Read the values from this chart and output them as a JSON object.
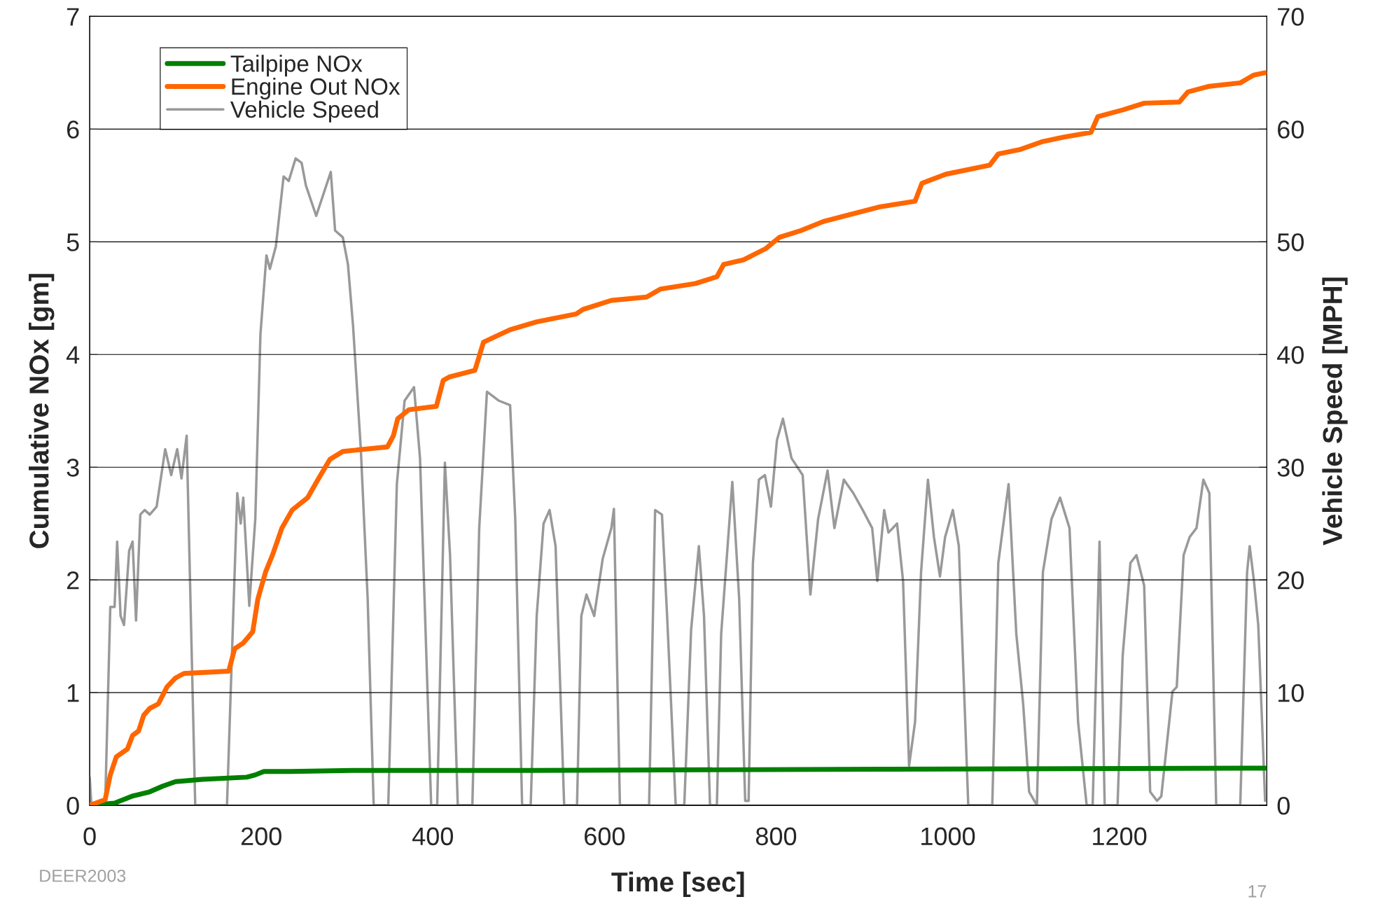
{
  "chart_data": {
    "type": "line",
    "xlabel": "Time [sec]",
    "ylabel": "Cumulative NOx [gm]",
    "y2label": "Vehicle Speed [MPH]",
    "xlim": [
      0,
      1372
    ],
    "xticks": [
      0,
      200,
      400,
      600,
      800,
      1000,
      1200
    ],
    "ylim": [
      0,
      7
    ],
    "yticks": [
      0,
      1,
      2,
      3,
      4,
      5,
      6,
      7
    ],
    "y2lim": [
      0,
      70
    ],
    "y2ticks": [
      0,
      10,
      20,
      30,
      40,
      50,
      60,
      70
    ],
    "grid": "y",
    "legend": "top left",
    "marker": "none",
    "line_style": "solid",
    "annotations": [
      "DEER2003",
      "17"
    ],
    "series": [
      {
        "name": "Tailpipe NOx",
        "color": "#008000",
        "x": [
          0,
          29,
          49,
          70,
          85,
          100,
          131,
          183,
          193,
          203,
          234,
          306,
          511,
          921,
          1370
        ],
        "values": [
          0,
          0.02,
          0.08,
          0.12,
          0.17,
          0.21,
          0.23,
          0.25,
          0.27,
          0.3,
          0.3,
          0.31,
          0.31,
          0.32,
          0.33
        ]
      },
      {
        "name": "Engine Out NOx",
        "color": "#ff6600",
        "x": [
          0,
          18,
          24,
          31,
          44,
          50,
          57,
          63,
          70,
          80,
          90,
          100,
          110,
          162,
          169,
          179,
          190,
          196,
          205,
          213,
          224,
          236,
          254,
          266,
          280,
          295,
          347,
          354,
          359,
          372,
          404,
          412,
          419,
          449,
          459,
          490,
          521,
          567,
          575,
          608,
          649,
          665,
          706,
          731,
          739,
          762,
          788,
          804,
          829,
          855,
          880,
          921,
          962,
          970,
          998,
          1049,
          1059,
          1085,
          1111,
          1136,
          1167,
          1175,
          1204,
          1229,
          1270,
          1280,
          1305,
          1341,
          1357,
          1370
        ],
        "values": [
          0,
          0.05,
          0.27,
          0.43,
          0.5,
          0.62,
          0.66,
          0.8,
          0.86,
          0.9,
          1.05,
          1.13,
          1.17,
          1.19,
          1.39,
          1.44,
          1.54,
          1.83,
          2.07,
          2.22,
          2.46,
          2.62,
          2.73,
          2.89,
          3.07,
          3.14,
          3.18,
          3.28,
          3.43,
          3.51,
          3.54,
          3.77,
          3.8,
          3.86,
          4.11,
          4.22,
          4.29,
          4.36,
          4.4,
          4.48,
          4.51,
          4.58,
          4.63,
          4.69,
          4.8,
          4.84,
          4.94,
          5.04,
          5.1,
          5.18,
          5.23,
          5.31,
          5.36,
          5.52,
          5.6,
          5.68,
          5.78,
          5.82,
          5.89,
          5.93,
          5.97,
          6.11,
          6.17,
          6.23,
          6.24,
          6.33,
          6.38,
          6.41,
          6.48,
          6.5
        ]
      },
      {
        "name": "Vehicle Speed",
        "color": "#999999",
        "axis": "y2",
        "x": [
          0,
          2,
          18,
          24,
          29,
          32,
          36,
          40,
          46,
          50,
          54,
          59,
          64,
          70,
          78,
          88,
          95,
          102,
          107,
          113,
          123,
          160,
          172,
          176,
          179,
          186,
          193,
          199,
          206,
          210,
          217,
          226,
          232,
          240,
          247,
          252,
          264,
          281,
          286,
          295,
          301,
          307,
          316,
          324,
          331,
          348,
          358,
          367,
          378,
          385,
          398,
          405,
          414,
          420,
          429,
          446,
          454,
          463,
          477,
          490,
          496,
          504,
          514,
          521,
          529,
          536,
          543,
          553,
          568,
          573,
          579,
          588,
          598,
          608,
          611,
          618,
          652,
          659,
          667,
          673,
          683,
          693,
          701,
          710,
          716,
          723,
          731,
          736,
          749,
          757,
          764,
          768,
          773,
          780,
          787,
          794,
          801,
          808,
          818,
          831,
          840,
          849,
          860,
          868,
          879,
          890,
          901,
          912,
          918,
          926,
          931,
          941,
          948,
          955,
          962,
          969,
          977,
          984,
          991,
          997,
          1006,
          1013,
          1024,
          1052,
          1059,
          1071,
          1080,
          1088,
          1095,
          1104,
          1111,
          1121,
          1131,
          1142,
          1152,
          1162,
          1169,
          1177,
          1183,
          1198,
          1204,
          1213,
          1220,
          1229,
          1236,
          1244,
          1249,
          1262,
          1267,
          1275,
          1282,
          1290,
          1298,
          1305,
          1313,
          1341,
          1349,
          1352,
          1357,
          1362,
          1370
        ],
        "values": [
          2.5,
          0,
          0,
          17.6,
          17.6,
          23.4,
          16.8,
          16,
          22.6,
          23.4,
          16.4,
          25.8,
          26.2,
          25.8,
          26.5,
          31.6,
          29.3,
          31.6,
          29,
          32.8,
          0,
          0,
          27.7,
          25,
          27.3,
          17.7,
          25.4,
          41.8,
          48.8,
          47.6,
          49.6,
          55.8,
          55.4,
          57.4,
          57,
          55,
          52.3,
          56.2,
          51,
          50.4,
          48,
          42.5,
          31.6,
          18.3,
          0,
          0,
          28.5,
          35.9,
          37.1,
          30.8,
          0,
          0,
          30.4,
          22.2,
          0,
          0,
          24.6,
          36.7,
          35.9,
          35.5,
          25.4,
          0,
          0,
          16.8,
          25,
          26.2,
          23,
          0,
          0,
          16.8,
          18.7,
          16.8,
          21.9,
          24.6,
          26.3,
          0,
          0,
          26.2,
          25.8,
          16.8,
          0,
          0,
          15.6,
          23,
          16.8,
          0,
          0,
          15.2,
          28.7,
          18.3,
          0.4,
          0.4,
          21.5,
          28.9,
          29.3,
          26.5,
          32.4,
          34.3,
          30.8,
          29.3,
          18.7,
          25.4,
          29.7,
          24.6,
          28.9,
          27.7,
          26.2,
          24.6,
          19.9,
          26.2,
          24.2,
          25,
          19.9,
          3.5,
          7.4,
          20.7,
          28.9,
          23.8,
          20.3,
          23.8,
          26.2,
          23,
          0,
          0,
          21.5,
          28.5,
          15.2,
          9,
          1.2,
          0,
          20.7,
          25.4,
          27.3,
          24.6,
          7.4,
          0,
          0,
          23.4,
          0,
          0,
          13.3,
          21.5,
          22.2,
          19.5,
          1.2,
          0.4,
          0.8,
          10.1,
          10.5,
          22.2,
          23.8,
          24.6,
          28.9,
          27.7,
          0,
          0,
          20.7,
          23,
          19.9,
          16,
          0.4
        ]
      }
    ]
  }
}
